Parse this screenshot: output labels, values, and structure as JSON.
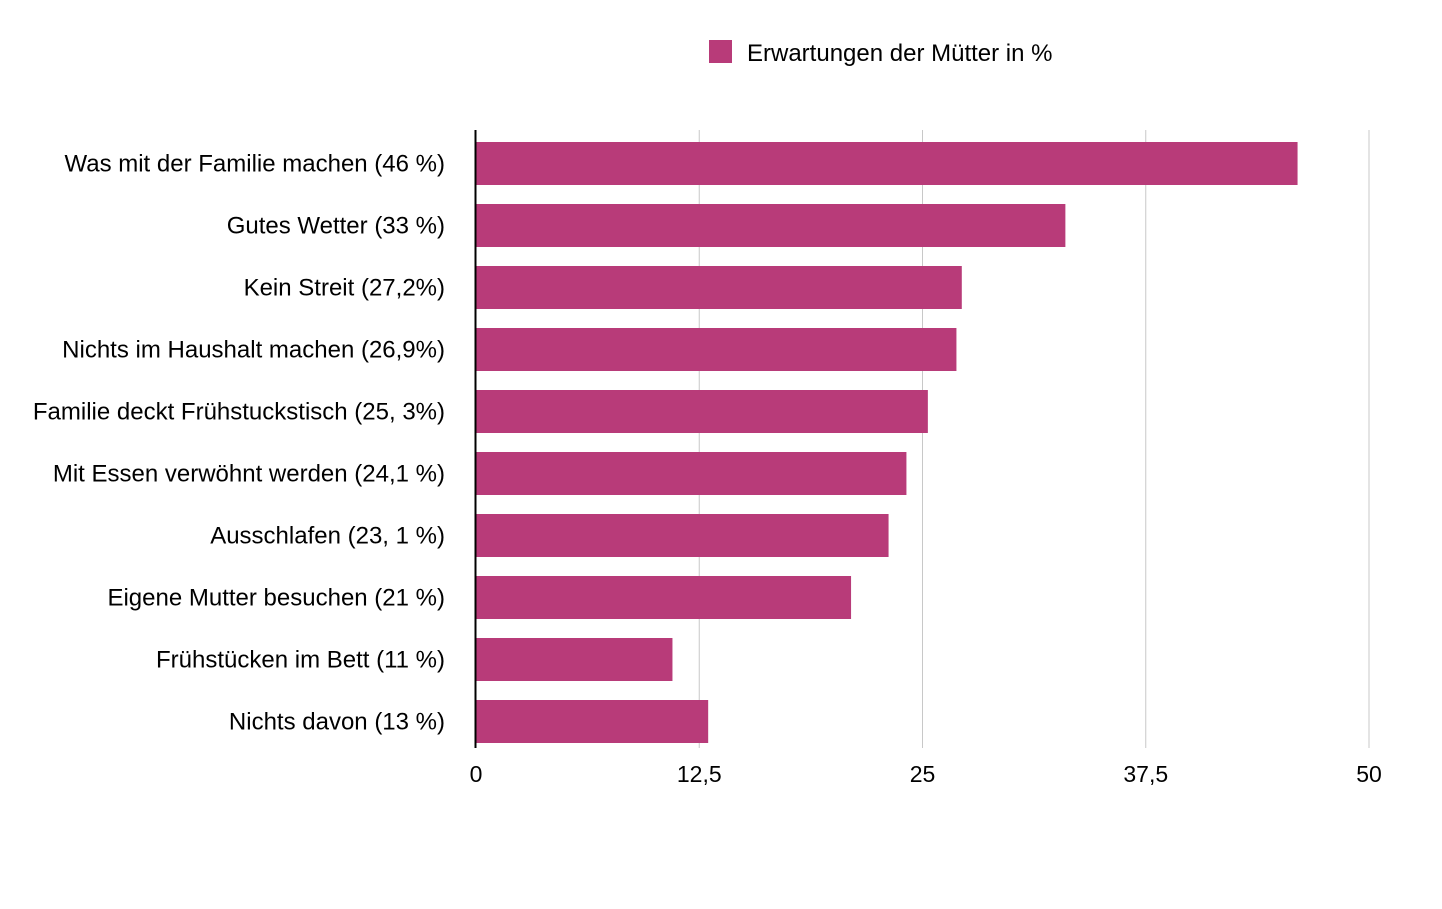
{
  "chart_data": {
    "type": "bar",
    "orientation": "horizontal",
    "categories": [
      "Was mit der Familie machen (46 %)",
      "Gutes Wetter (33 %)",
      "Kein Streit (27,2%)",
      "Nichts im Haushalt machen (26,9%)",
      "Familie deckt Frühstuckstisch (25, 3%)",
      "Mit Essen verwöhnt werden (24,1 %)",
      "Ausschlafen (23, 1 %)",
      "Eigene Mutter besuchen (21 %)",
      "Frühstücken im Bett (11 %)",
      "Nichts davon (13 %)"
    ],
    "series": [
      {
        "name": "Erwartungen der Mütter in %",
        "color": "#b83b79",
        "values": [
          46,
          33,
          27.2,
          26.9,
          25.3,
          24.1,
          23.1,
          21,
          11,
          13
        ]
      }
    ],
    "xlim": [
      0,
      50
    ],
    "xticks": [
      0,
      12.5,
      25,
      37.5,
      50
    ],
    "xtick_labels": [
      "0",
      "12,5",
      "25",
      "37,5",
      "50"
    ],
    "grid": "vertical",
    "legend": "top-center",
    "title": "",
    "xlabel": "",
    "ylabel": ""
  },
  "colors": {
    "bar": "#b83b79",
    "grid": "#c8c8c8",
    "axis": "#000000"
  }
}
